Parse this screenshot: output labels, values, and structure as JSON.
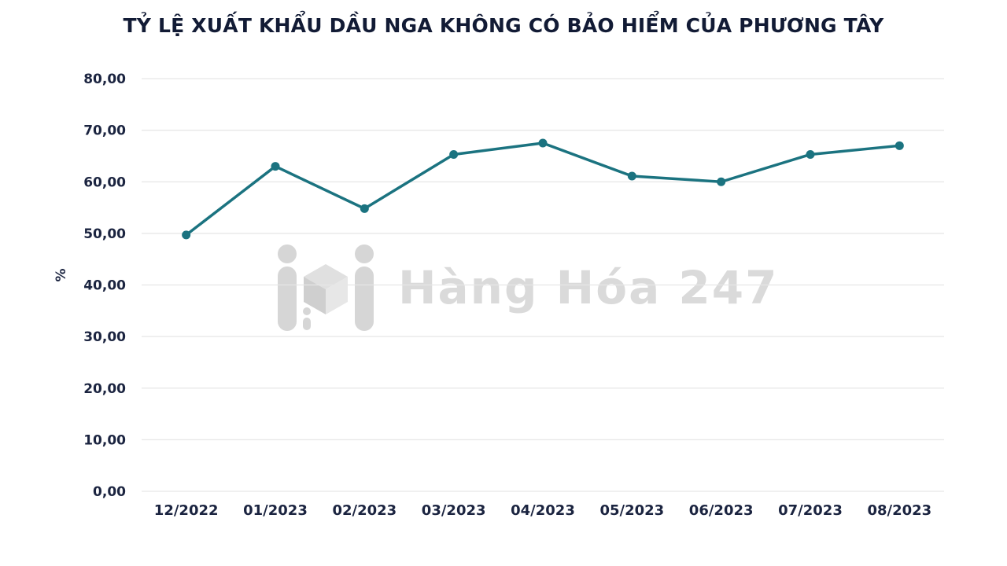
{
  "watermark": {
    "text": "Hàng Hóa 247"
  },
  "colors": {
    "line": "#1b7380",
    "title_text": "#121b35",
    "axis_text": "#1b2440",
    "gridline": "#e6e6e6",
    "watermark": "#dadada"
  },
  "chart_data": {
    "type": "line",
    "title": "TỶ LỆ XUẤT KHẨU DẦU NGA KHÔNG CÓ BẢO HIỂM CỦA PHƯƠNG TÂY",
    "categories": [
      "12/2022",
      "01/2023",
      "02/2023",
      "03/2023",
      "04/2023",
      "05/2023",
      "06/2023",
      "07/2023",
      "08/2023"
    ],
    "values": [
      49.7,
      63.0,
      54.8,
      65.3,
      67.5,
      61.1,
      60.0,
      65.3,
      67.0
    ],
    "xlabel": "",
    "ylabel": "%",
    "ylim": [
      0,
      80
    ],
    "y_tick_values": [
      0,
      10,
      20,
      30,
      40,
      50,
      60,
      70,
      80
    ],
    "y_tick_labels": [
      "0,00",
      "10,00",
      "20,00",
      "30,00",
      "40,00",
      "50,00",
      "60,00",
      "70,00",
      "80,00"
    ],
    "grid": true,
    "legend": "none",
    "line_color": "#1b7380",
    "marker": "circle"
  }
}
